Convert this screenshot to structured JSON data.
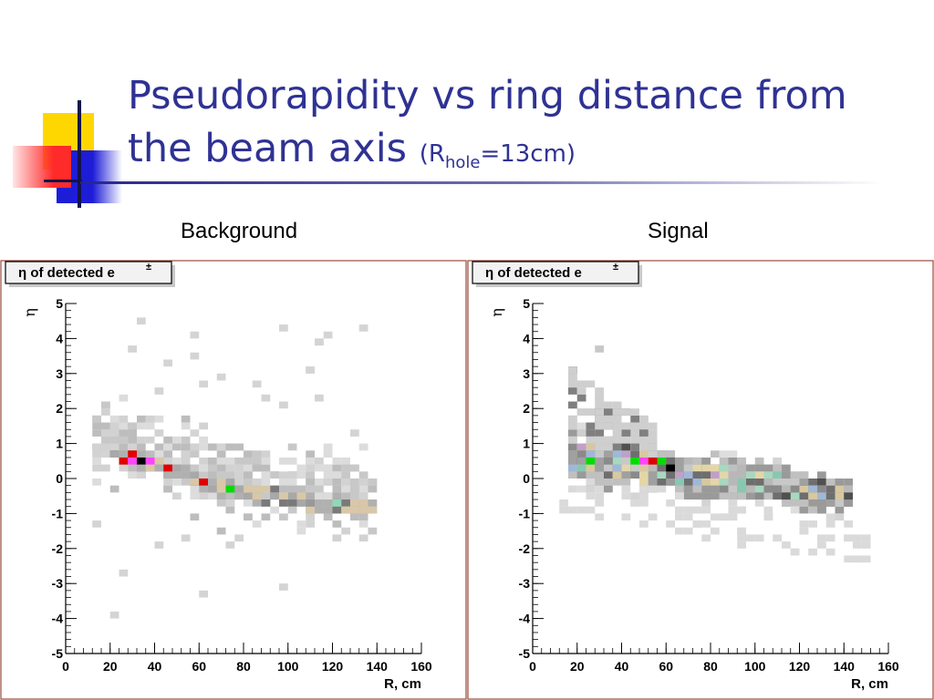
{
  "slide": {
    "title_line1": "Pseudorapidity vs ring distance from",
    "title_line2": "the beam axis",
    "title_paren_open": "(R",
    "title_sub": "hole",
    "title_paren_close": "=13cm)",
    "colors": {
      "title": "#2f3293",
      "accent_yellow": "#ffd700",
      "accent_red": "#ff3030",
      "accent_blue": "#2020d0"
    }
  },
  "panels": [
    {
      "label": "Background"
    },
    {
      "label": "Signal"
    }
  ],
  "chart_data": [
    {
      "type": "heatmap",
      "stats_box": {
        "prefix": "η of detected e",
        "superscript": "±"
      },
      "ylabel": "η",
      "xlabel": "R, cm",
      "xlim": [
        0,
        160
      ],
      "ylim": [
        -5,
        5
      ],
      "x_ticks": [
        "0",
        "20",
        "40",
        "60",
        "80",
        "100",
        "120",
        "140",
        "160"
      ],
      "y_ticks": [
        "5",
        "4",
        "3",
        "2",
        "1",
        "0",
        "-1",
        "-2",
        "-3",
        "-4",
        "-5"
      ],
      "bin_size": [
        4,
        0.2
      ],
      "ridge": {
        "x": [
          20,
          40,
          60,
          80,
          100,
          120,
          140
        ],
        "y": [
          0.75,
          0.35,
          -0.1,
          -0.4,
          -0.6,
          -0.75,
          -0.85
        ]
      },
      "cloud": {
        "x_range": [
          12,
          140
        ],
        "y_range": [
          -2.4,
          2.6
        ]
      },
      "highlight_bins": [
        {
          "x": 24,
          "y": 0.6,
          "color": "#e00000"
        },
        {
          "x": 28,
          "y": 0.7,
          "color": "#e00000"
        },
        {
          "x": 30,
          "y": 0.55,
          "color": "#ff44ff"
        },
        {
          "x": 34,
          "y": 0.6,
          "color": "#000000"
        },
        {
          "x": 38,
          "y": 0.5,
          "color": "#ff44ff"
        },
        {
          "x": 46,
          "y": 0.2,
          "color": "#e00000"
        },
        {
          "x": 62,
          "y": -0.1,
          "color": "#e00000"
        },
        {
          "x": 74,
          "y": -0.3,
          "color": "#00dd00"
        },
        {
          "x": 110,
          "y": -0.65,
          "color": "#999999"
        },
        {
          "x": 122,
          "y": -0.75,
          "color": "#90d8b8"
        }
      ]
    },
    {
      "type": "heatmap",
      "stats_box": {
        "prefix": "η of detected e",
        "superscript": "±"
      },
      "ylabel": "η",
      "xlabel": "R, cm",
      "xlim": [
        0,
        160
      ],
      "ylim": [
        -5,
        5
      ],
      "x_ticks": [
        "0",
        "20",
        "40",
        "60",
        "80",
        "100",
        "120",
        "140",
        "160"
      ],
      "y_ticks": [
        "5",
        "4",
        "3",
        "2",
        "1",
        "0",
        "-1",
        "-2",
        "-3",
        "-4",
        "-5"
      ],
      "bin_size": [
        4,
        0.2
      ],
      "band": {
        "x_range": [
          18,
          142
        ],
        "center_start": 0.65,
        "center_end": -0.5
      },
      "highlight_bins": [
        {
          "x": 26,
          "y": 0.4,
          "color": "#00dd00"
        },
        {
          "x": 46,
          "y": 0.5,
          "color": "#00dd00"
        },
        {
          "x": 50,
          "y": 0.45,
          "color": "#ff44ff"
        },
        {
          "x": 54,
          "y": 0.4,
          "color": "#e00000"
        },
        {
          "x": 58,
          "y": 0.4,
          "color": "#00dd00"
        },
        {
          "x": 62,
          "y": 0.25,
          "color": "#000000"
        }
      ]
    }
  ]
}
